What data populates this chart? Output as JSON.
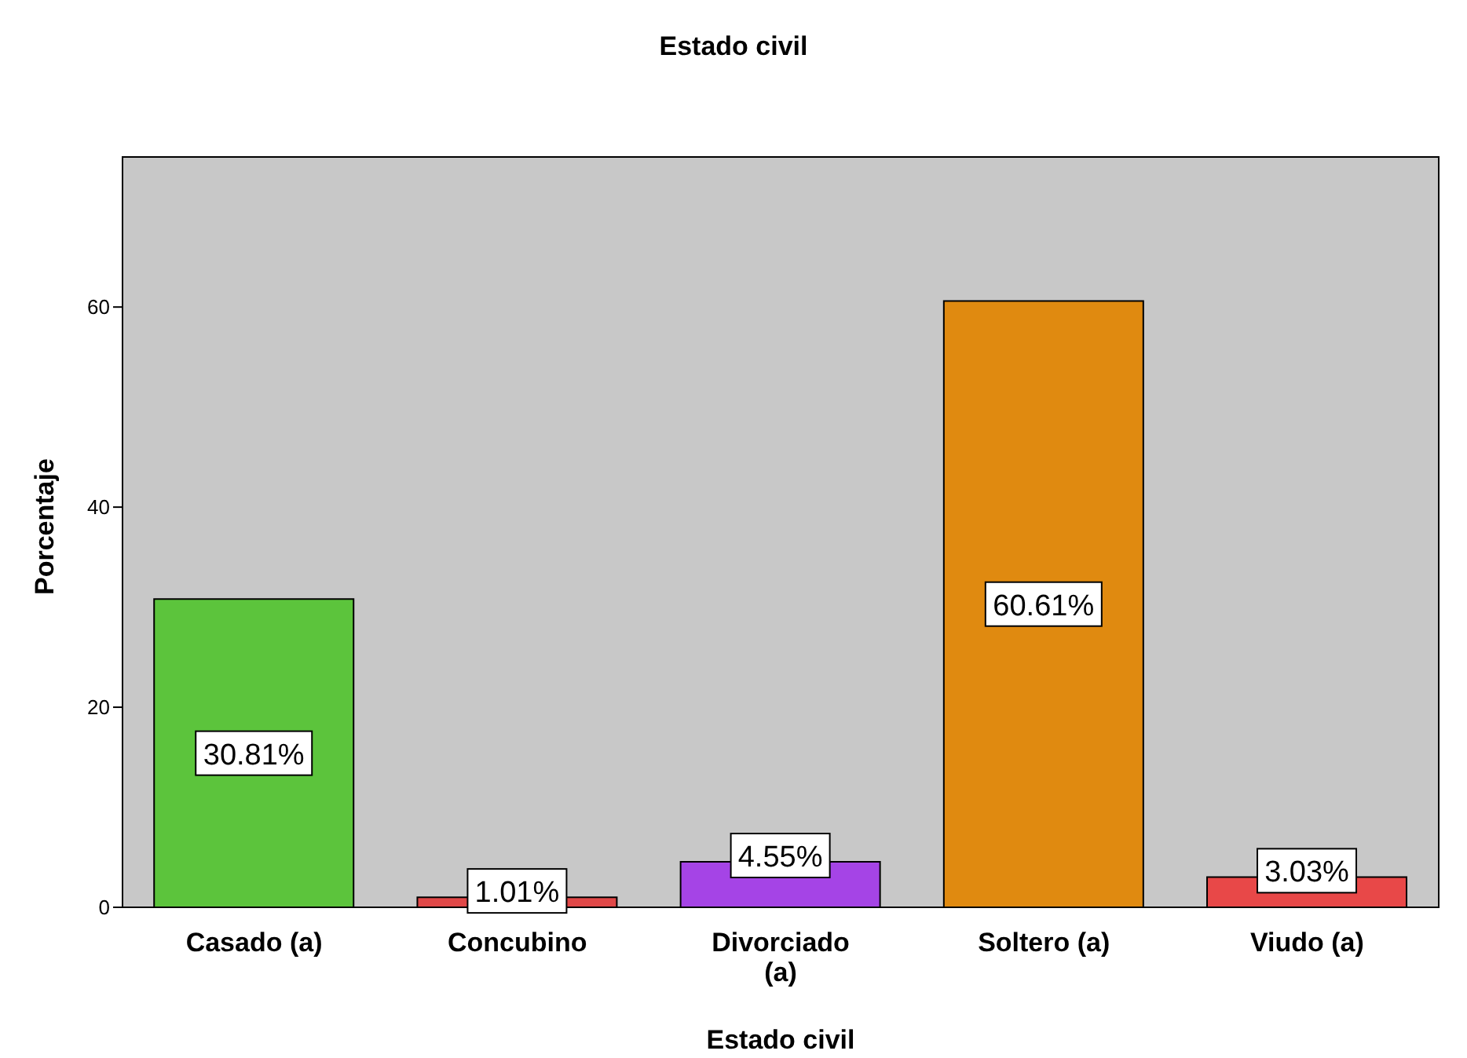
{
  "chart_data": {
    "type": "bar",
    "title": "Estado civil",
    "xlabel": "Estado civil",
    "ylabel": "Porcentaje",
    "categories": [
      "Casado (a)",
      "Concubino",
      "Divorciado (a)",
      "Soltero (a)",
      "Viudo (a)"
    ],
    "values": [
      30.81,
      1.01,
      4.55,
      60.61,
      3.03
    ],
    "colors": [
      "#5cc43c",
      "#e04848",
      "#a544e6",
      "#e08a10",
      "#e84848"
    ],
    "value_labels": [
      "30.81%",
      "1.01%",
      "4.55%",
      "60.61%",
      "3.03%"
    ],
    "ylim": [
      0,
      75
    ],
    "yticks": [
      0,
      20,
      40,
      60
    ],
    "legend": false
  }
}
